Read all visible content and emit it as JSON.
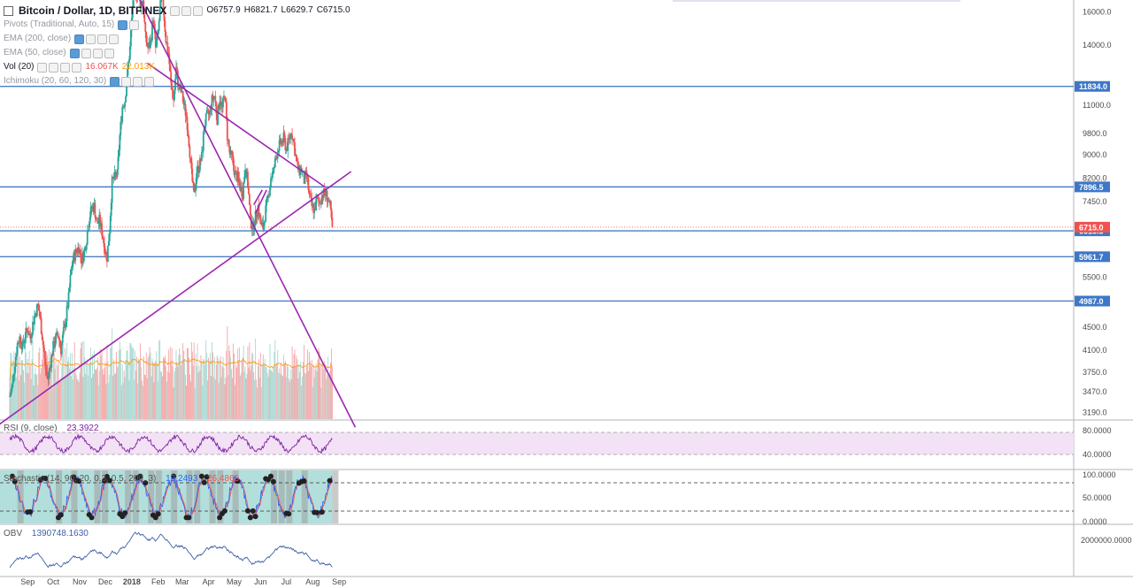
{
  "header": {
    "symbol_title": "Bitcoin / Dollar, 1D, BITFINEX",
    "ohlc": {
      "o": "O6757.9",
      "h": "H6821.7",
      "l": "L6629.7",
      "c": "C6715.0"
    }
  },
  "indicators": [
    {
      "name": "Pivots (Traditional, Auto, 15)",
      "faint": true
    },
    {
      "name": "EMA (200, close)",
      "faint": true
    },
    {
      "name": "EMA (50, close)",
      "faint": true
    },
    {
      "name": "Vol (20)",
      "faint": false,
      "values": [
        "16.067K",
        "22.013K"
      ],
      "value_colors": [
        "#ef5350",
        "#ff9800"
      ]
    },
    {
      "name": "Ichimoku (20, 60, 120, 30)",
      "faint": true
    }
  ],
  "panes": {
    "rsi": {
      "label": "RSI (9, close)",
      "value": "23.3922",
      "ticks": [
        "80.0000",
        "40.0000"
      ]
    },
    "stoch": {
      "label": "Stochastic (14, 90, 20, 0.3, 0.5, 200, 3)",
      "values": [
        "19.2493",
        "26.4865"
      ],
      "ticks": [
        "100.0000",
        "50.0000",
        "0.0000"
      ]
    },
    "obv": {
      "label": "OBV",
      "value": "1390748.1630",
      "ticks": [
        "2000000.0000"
      ]
    }
  },
  "colors": {
    "up": "#26a69a",
    "down": "#ef5350",
    "trend": "#9c27b0",
    "level": "#4a7fc1",
    "vol_up": "#a9d9d2",
    "vol_down": "#f5a6a6",
    "ma": "#ff9800",
    "rsi": "#7b1fa2",
    "rsi_band": "#f3e1f5",
    "stoch_bg": "#b2dfdb",
    "obv": "#3f5fa8"
  },
  "chart_data": {
    "type": "candlestick",
    "title": "Bitcoin / Dollar, 1D, BITFINEX",
    "y_scale": "log",
    "price_ticks": [
      16000.0,
      14000.0,
      11000.0,
      9800.0,
      9000.0,
      8200.0,
      7450.0,
      5500.0,
      4500.0,
      4100.0,
      3750.0,
      3470.0,
      3190.0
    ],
    "price_tick_labels": [
      "16000.0",
      "14000.0",
      "11000.0",
      "9800.0",
      "9000.0",
      "8200.0",
      "7450.0",
      "5500.0",
      "4500.0",
      "4100.0",
      "3750.0",
      "3470.0",
      "3190.0"
    ],
    "horizontal_levels": [
      {
        "value": 11834.0,
        "label": "11834.0"
      },
      {
        "value": 7896.5,
        "label": "7896.5"
      },
      {
        "value": 6615.3,
        "label": "6615.3"
      },
      {
        "value": 5961.7,
        "label": "5961.7"
      },
      {
        "value": 4987.0,
        "label": "4987.0"
      }
    ],
    "last_price": {
      "value": 6715.0,
      "label": "6715.0"
    },
    "x_labels": [
      "Sep",
      "Oct",
      "Nov",
      "Dec",
      "2018",
      "Feb",
      "Mar",
      "Apr",
      "May",
      "Jun",
      "Jul",
      "Aug",
      "Sep"
    ],
    "x_label_dates": [
      "2017-09-01",
      "2017-10-01",
      "2017-11-01",
      "2017-12-01",
      "2018-01-01",
      "2018-02-01",
      "2018-03-01",
      "2018-04-01",
      "2018-05-01",
      "2018-06-01",
      "2018-07-01",
      "2018-08-01",
      "2018-09-01"
    ],
    "x_start": "2017-08-11",
    "candles_start": "2017-08-11",
    "close_series": [
      3400,
      3550,
      3900,
      4200,
      4300,
      4150,
      4350,
      4450,
      4300,
      4550,
      4750,
      4900,
      4600,
      4200,
      3800,
      3650,
      3900,
      4150,
      4300,
      4350,
      4100,
      4400,
      4650,
      5050,
      5650,
      5950,
      6100,
      6200,
      5900,
      6050,
      6400,
      6950,
      7250,
      7300,
      6800,
      6900,
      6600,
      6200,
      5950,
      6650,
      8050,
      8200,
      8300,
      9700,
      10900,
      11200,
      12500,
      13800,
      16400,
      17600,
      17100,
      16500,
      16800,
      14400,
      13800,
      14100,
      15600,
      13800,
      14700,
      16800,
      16200,
      14300,
      13500,
      11900,
      11200,
      12700,
      11800,
      11600,
      11000,
      10500,
      9500,
      8300,
      7600,
      8400,
      8600,
      8900,
      10100,
      10500,
      10600,
      11200,
      11400,
      10400,
      11300,
      10800,
      11500,
      9700,
      9000,
      8800,
      8300,
      8200,
      7900,
      7700,
      8600,
      8000,
      6900,
      6700,
      7000,
      7300,
      6800,
      6700,
      7200,
      7600,
      8200,
      8400,
      8900,
      9300,
      9400,
      9600,
      9200,
      9500,
      9900,
      9400,
      8700,
      8400,
      8500,
      8100,
      8300,
      7600,
      7300,
      7200,
      7500,
      7400,
      7650,
      7700,
      7600,
      7300,
      6715
    ],
    "close_series_step_days": 3,
    "trendlines": [
      {
        "start": {
          "date": "2017-07-25",
          "price": 3000
        },
        "end": {
          "date": "2018-09-15",
          "price": 8400
        }
      },
      {
        "start": {
          "date": "2017-12-17",
          "price": 19800
        },
        "end": {
          "date": "2018-09-20",
          "price": 3000
        }
      },
      {
        "start": {
          "date": "2018-01-19",
          "price": 13000
        },
        "end": {
          "date": "2018-08-15",
          "price": 7900
        }
      },
      {
        "start": {
          "date": "2018-05-26",
          "price": 7100
        },
        "end": {
          "date": "2018-06-08",
          "price": 7800
        }
      },
      {
        "start": {
          "date": "2018-05-24",
          "price": 7350
        },
        "end": {
          "date": "2018-06-03",
          "price": 7800
        }
      }
    ]
  }
}
